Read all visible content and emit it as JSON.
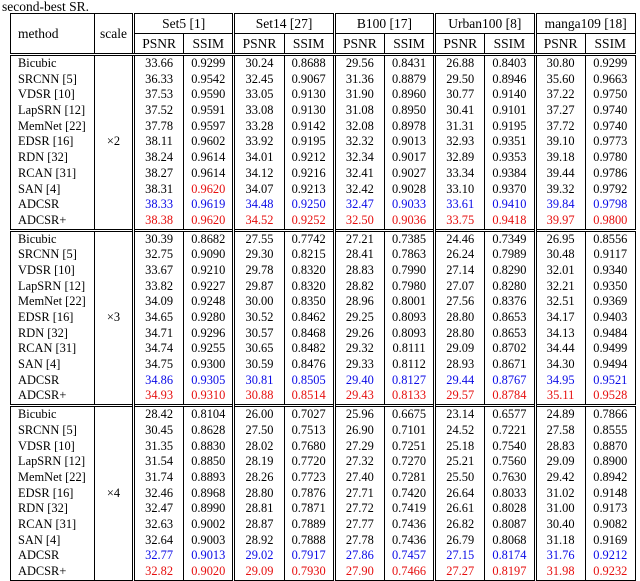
{
  "caption": "second-best SR.",
  "colors": {
    "best": "#e60f0f",
    "second_best": "#0a0ae6",
    "text": "#000000",
    "border": "#000000"
  },
  "table": {
    "col_method": "method",
    "col_scale": "scale",
    "subheaders": [
      "PSNR",
      "SSIM"
    ],
    "datasets": [
      {
        "name": "Set5 [1]"
      },
      {
        "name": "Set14 [27]"
      },
      {
        "name": "B100 [17]"
      },
      {
        "name": "Urban100 [8]"
      },
      {
        "name": "manga109 [18]"
      }
    ],
    "groups": [
      {
        "scale": "×2",
        "rows": [
          {
            "method": "Bicubic",
            "c": "k",
            "v": [
              "33.66",
              "0.9299",
              "30.24",
              "0.8688",
              "29.56",
              "0.8431",
              "26.88",
              "0.8403",
              "30.80",
              "0.9299"
            ]
          },
          {
            "method": "SRCNN [5]",
            "c": "k",
            "v": [
              "36.33",
              "0.9542",
              "32.45",
              "0.9067",
              "31.36",
              "0.8879",
              "29.50",
              "0.8946",
              "35.60",
              "0.9663"
            ]
          },
          {
            "method": "VDSR [10]",
            "c": "k",
            "v": [
              "37.53",
              "0.9590",
              "33.05",
              "0.9130",
              "31.90",
              "0.8960",
              "30.77",
              "0.9140",
              "37.22",
              "0.9750"
            ]
          },
          {
            "method": "LapSRN [12]",
            "c": "k",
            "v": [
              "37.52",
              "0.9591",
              "33.08",
              "0.9130",
              "31.08",
              "0.8950",
              "30.41",
              "0.9101",
              "37.27",
              "0.9740"
            ]
          },
          {
            "method": "MemNet [22]",
            "c": "k",
            "v": [
              "37.78",
              "0.9597",
              "33.28",
              "0.9142",
              "32.08",
              "0.8978",
              "31.31",
              "0.9195",
              "37.72",
              "0.9740"
            ]
          },
          {
            "method": "EDSR [16]",
            "c": "k",
            "v": [
              "38.11",
              "0.9602",
              "33.92",
              "0.9195",
              "32.32",
              "0.9013",
              "32.93",
              "0.9351",
              "39.10",
              "0.9773"
            ]
          },
          {
            "method": "RDN [32]",
            "c": "k",
            "v": [
              "38.24",
              "0.9614",
              "34.01",
              "0.9212",
              "32.34",
              "0.9017",
              "32.89",
              "0.9353",
              "39.18",
              "0.9780"
            ]
          },
          {
            "method": "RCAN [31]",
            "c": "k",
            "v": [
              "38.27",
              "0.9614",
              "34.12",
              "0.9216",
              "32.41",
              "0.9027",
              "33.34",
              "0.9384",
              "39.44",
              "0.9786"
            ]
          },
          {
            "method": "SAN [4]",
            "c": "k",
            "ov": {
              "1": "r"
            },
            "v": [
              "38.31",
              "0.9620",
              "34.07",
              "0.9213",
              "32.42",
              "0.9028",
              "33.10",
              "0.9370",
              "39.32",
              "0.9792"
            ]
          },
          {
            "method": "ADCSR",
            "c": "b",
            "v": [
              "38.33",
              "0.9619",
              "34.48",
              "0.9250",
              "32.47",
              "0.9033",
              "33.61",
              "0.9410",
              "39.84",
              "0.9798"
            ]
          },
          {
            "method": "ADCSR+",
            "c": "r",
            "v": [
              "38.38",
              "0.9620",
              "34.52",
              "0.9252",
              "32.50",
              "0.9036",
              "33.75",
              "0.9418",
              "39.97",
              "0.9800"
            ]
          }
        ]
      },
      {
        "scale": "×3",
        "rows": [
          {
            "method": "Bicubic",
            "c": "k",
            "v": [
              "30.39",
              "0.8682",
              "27.55",
              "0.7742",
              "27.21",
              "0.7385",
              "24.46",
              "0.7349",
              "26.95",
              "0.8556"
            ]
          },
          {
            "method": "SRCNN [5]",
            "c": "k",
            "v": [
              "32.75",
              "0.9090",
              "29.30",
              "0.8215",
              "28.41",
              "0.7863",
              "26.24",
              "0.7989",
              "30.48",
              "0.9117"
            ]
          },
          {
            "method": "VDSR [10]",
            "c": "k",
            "v": [
              "33.67",
              "0.9210",
              "29.78",
              "0.8320",
              "28.83",
              "0.7990",
              "27.14",
              "0.8290",
              "32.01",
              "0.9340"
            ]
          },
          {
            "method": "LapSRN [12]",
            "c": "k",
            "v": [
              "33.82",
              "0.9227",
              "29.87",
              "0.8320",
              "28.82",
              "0.7980",
              "27.07",
              "0.8280",
              "32.21",
              "0.9350"
            ]
          },
          {
            "method": "MemNet [22]",
            "c": "k",
            "v": [
              "34.09",
              "0.9248",
              "30.00",
              "0.8350",
              "28.96",
              "0.8001",
              "27.56",
              "0.8376",
              "32.51",
              "0.9369"
            ]
          },
          {
            "method": "EDSR [16]",
            "c": "k",
            "v": [
              "34.65",
              "0.9280",
              "30.52",
              "0.8462",
              "29.25",
              "0.8093",
              "28.80",
              "0.8653",
              "34.17",
              "0.9403"
            ]
          },
          {
            "method": "RDN [32]",
            "c": "k",
            "v": [
              "34.71",
              "0.9296",
              "30.57",
              "0.8468",
              "29.26",
              "0.8093",
              "28.80",
              "0.8653",
              "34.13",
              "0.9484"
            ]
          },
          {
            "method": "RCAN [31]",
            "c": "k",
            "v": [
              "34.74",
              "0.9255",
              "30.65",
              "0.8482",
              "29.32",
              "0.8111",
              "29.09",
              "0.8702",
              "34.44",
              "0.9499"
            ]
          },
          {
            "method": "SAN [4]",
            "c": "k",
            "v": [
              "34.75",
              "0.9300",
              "30.59",
              "0.8476",
              "29.33",
              "0.8112",
              "28.93",
              "0.8671",
              "34.30",
              "0.9494"
            ]
          },
          {
            "method": "ADCSR",
            "c": "b",
            "v": [
              "34.86",
              "0.9305",
              "30.81",
              "0.8505",
              "29.40",
              "0.8127",
              "29.44",
              "0.8767",
              "34.95",
              "0.9521"
            ]
          },
          {
            "method": "ADCSR+",
            "c": "r",
            "v": [
              "34.93",
              "0.9310",
              "30.88",
              "0.8514",
              "29.43",
              "0.8133",
              "29.57",
              "0.8784",
              "35.11",
              "0.9528"
            ]
          }
        ]
      },
      {
        "scale": "×4",
        "rows": [
          {
            "method": "Bicubic",
            "c": "k",
            "v": [
              "28.42",
              "0.8104",
              "26.00",
              "0.7027",
              "25.96",
              "0.6675",
              "23.14",
              "0.6577",
              "24.89",
              "0.7866"
            ]
          },
          {
            "method": "SRCNN [5]",
            "c": "k",
            "v": [
              "30.45",
              "0.8628",
              "27.50",
              "0.7513",
              "26.90",
              "0.7101",
              "24.52",
              "0.7221",
              "27.58",
              "0.8555"
            ]
          },
          {
            "method": "VDSR [10]",
            "c": "k",
            "v": [
              "31.35",
              "0.8830",
              "28.02",
              "0.7680",
              "27.29",
              "0.7251",
              "25.18",
              "0.7540",
              "28.83",
              "0.8870"
            ]
          },
          {
            "method": "LapSRN [12]",
            "c": "k",
            "v": [
              "31.54",
              "0.8850",
              "28.19",
              "0.7720",
              "27.32",
              "0.7270",
              "25.21",
              "0.7560",
              "29.09",
              "0.8900"
            ]
          },
          {
            "method": "MemNet [22]",
            "c": "k",
            "v": [
              "31.74",
              "0.8893",
              "28.26",
              "0.7723",
              "27.40",
              "0.7281",
              "25.50",
              "0.7630",
              "29.42",
              "0.8942"
            ]
          },
          {
            "method": "EDSR [16]",
            "c": "k",
            "v": [
              "32.46",
              "0.8968",
              "28.80",
              "0.7876",
              "27.71",
              "0.7420",
              "26.64",
              "0.8033",
              "31.02",
              "0.9148"
            ]
          },
          {
            "method": "RDN [32]",
            "c": "k",
            "v": [
              "32.47",
              "0.8990",
              "28.81",
              "0.7871",
              "27.72",
              "0.7419",
              "26.61",
              "0.8028",
              "31.00",
              "0.9173"
            ]
          },
          {
            "method": "RCAN [31]",
            "c": "k",
            "v": [
              "32.63",
              "0.9002",
              "28.87",
              "0.7889",
              "27.77",
              "0.7436",
              "26.82",
              "0.8087",
              "30.40",
              "0.9082"
            ]
          },
          {
            "method": "SAN [4]",
            "c": "k",
            "v": [
              "32.64",
              "0.9003",
              "28.92",
              "0.7888",
              "27.78",
              "0.7436",
              "26.79",
              "0.8068",
              "31.18",
              "0.9169"
            ]
          },
          {
            "method": "ADCSR",
            "c": "b",
            "v": [
              "32.77",
              "0.9013",
              "29.02",
              "0.7917",
              "27.86",
              "0.7457",
              "27.15",
              "0.8174",
              "31.76",
              "0.9212"
            ]
          },
          {
            "method": "ADCSR+",
            "c": "r",
            "v": [
              "32.82",
              "0.9020",
              "29.09",
              "0.7930",
              "27.90",
              "0.7466",
              "27.27",
              "0.8197",
              "31.98",
              "0.9232"
            ]
          }
        ]
      }
    ]
  }
}
